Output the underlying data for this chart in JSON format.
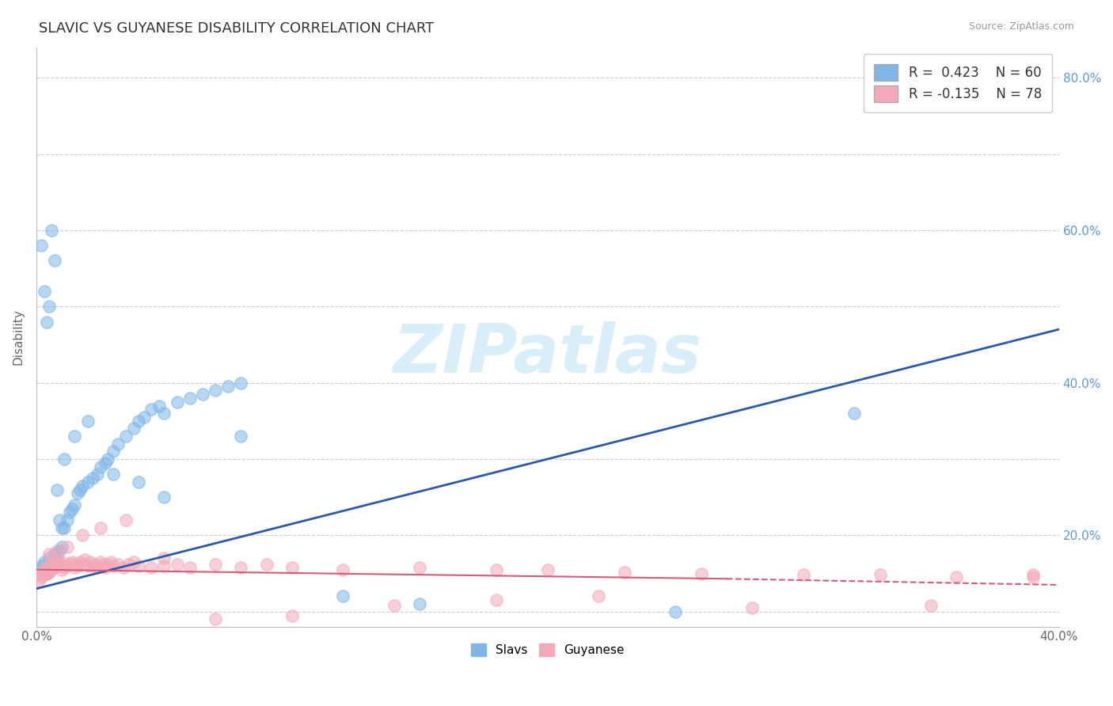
{
  "title": "SLAVIC VS GUYANESE DISABILITY CORRELATION CHART",
  "source_text": "Source: ZipAtlas.com",
  "ylabel": "Disability",
  "xlim": [
    0.0,
    0.4
  ],
  "ylim": [
    0.08,
    0.84
  ],
  "xticks": [
    0.0,
    0.05,
    0.1,
    0.15,
    0.2,
    0.25,
    0.3,
    0.35,
    0.4
  ],
  "yticks": [
    0.1,
    0.2,
    0.3,
    0.4,
    0.5,
    0.6,
    0.7,
    0.8
  ],
  "xtick_labels_show": [
    "0.0%",
    "40.0%"
  ],
  "ytick_labels": [
    "",
    "20.0%",
    "",
    "40.0%",
    "",
    "60.0%",
    "",
    "80.0%"
  ],
  "slavs_R": 0.423,
  "slavs_N": 60,
  "guyanese_R": -0.135,
  "guyanese_N": 78,
  "slavs_color": "#7EB6E8",
  "guyanese_color": "#F4A8B8",
  "slavs_line_color": "#2B5BA8",
  "guyanese_line_color": "#D45C7A",
  "watermark": "ZIPatlas",
  "watermark_color": "#D8EEF8",
  "slavs_x": [
    0.001,
    0.002,
    0.003,
    0.004,
    0.005,
    0.005,
    0.006,
    0.007,
    0.008,
    0.009,
    0.01,
    0.011,
    0.012,
    0.013,
    0.014,
    0.015,
    0.016,
    0.017,
    0.018,
    0.02,
    0.022,
    0.024,
    0.025,
    0.027,
    0.028,
    0.03,
    0.032,
    0.035,
    0.038,
    0.04,
    0.042,
    0.045,
    0.048,
    0.05,
    0.055,
    0.06,
    0.065,
    0.07,
    0.075,
    0.08,
    0.002,
    0.003,
    0.004,
    0.005,
    0.006,
    0.007,
    0.008,
    0.009,
    0.01,
    0.011,
    0.015,
    0.02,
    0.03,
    0.04,
    0.05,
    0.08,
    0.12,
    0.15,
    0.25,
    0.32
  ],
  "slavs_y": [
    0.155,
    0.16,
    0.165,
    0.15,
    0.158,
    0.17,
    0.162,
    0.175,
    0.168,
    0.18,
    0.185,
    0.21,
    0.22,
    0.23,
    0.235,
    0.24,
    0.255,
    0.26,
    0.265,
    0.27,
    0.275,
    0.28,
    0.29,
    0.295,
    0.3,
    0.31,
    0.32,
    0.33,
    0.34,
    0.35,
    0.355,
    0.365,
    0.37,
    0.36,
    0.375,
    0.38,
    0.385,
    0.39,
    0.395,
    0.4,
    0.58,
    0.52,
    0.48,
    0.5,
    0.6,
    0.56,
    0.26,
    0.22,
    0.21,
    0.3,
    0.33,
    0.35,
    0.28,
    0.27,
    0.25,
    0.33,
    0.12,
    0.11,
    0.1,
    0.36
  ],
  "guyanese_x": [
    0.001,
    0.001,
    0.002,
    0.002,
    0.003,
    0.003,
    0.004,
    0.004,
    0.005,
    0.005,
    0.006,
    0.006,
    0.007,
    0.007,
    0.008,
    0.008,
    0.009,
    0.01,
    0.01,
    0.011,
    0.012,
    0.013,
    0.014,
    0.015,
    0.015,
    0.016,
    0.017,
    0.018,
    0.019,
    0.02,
    0.021,
    0.022,
    0.023,
    0.024,
    0.025,
    0.026,
    0.027,
    0.028,
    0.029,
    0.03,
    0.032,
    0.034,
    0.036,
    0.038,
    0.04,
    0.045,
    0.05,
    0.055,
    0.06,
    0.07,
    0.08,
    0.09,
    0.1,
    0.12,
    0.15,
    0.18,
    0.2,
    0.23,
    0.26,
    0.3,
    0.33,
    0.36,
    0.39,
    0.005,
    0.008,
    0.012,
    0.018,
    0.025,
    0.035,
    0.05,
    0.07,
    0.1,
    0.14,
    0.18,
    0.22,
    0.28,
    0.35,
    0.39
  ],
  "guyanese_y": [
    0.14,
    0.148,
    0.145,
    0.152,
    0.148,
    0.155,
    0.15,
    0.158,
    0.152,
    0.16,
    0.155,
    0.162,
    0.158,
    0.165,
    0.16,
    0.168,
    0.163,
    0.155,
    0.165,
    0.158,
    0.16,
    0.163,
    0.165,
    0.158,
    0.162,
    0.16,
    0.165,
    0.162,
    0.168,
    0.16,
    0.165,
    0.16,
    0.162,
    0.158,
    0.165,
    0.162,
    0.158,
    0.162,
    0.165,
    0.16,
    0.162,
    0.158,
    0.162,
    0.165,
    0.16,
    0.158,
    0.16,
    0.162,
    0.158,
    0.162,
    0.158,
    0.162,
    0.158,
    0.155,
    0.158,
    0.155,
    0.155,
    0.152,
    0.15,
    0.148,
    0.148,
    0.145,
    0.148,
    0.175,
    0.18,
    0.185,
    0.2,
    0.21,
    0.22,
    0.17,
    0.09,
    0.095,
    0.108,
    0.115,
    0.12,
    0.105,
    0.108,
    0.145
  ]
}
